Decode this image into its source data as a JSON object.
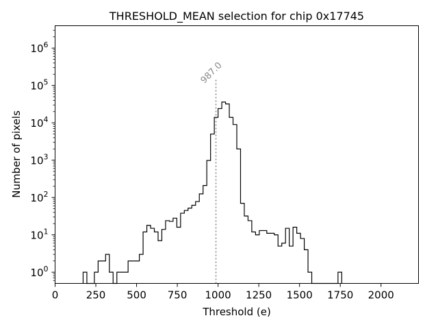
{
  "chart_data": {
    "type": "histogram",
    "title": "THRESHOLD_MEAN selection for chip 0x17745",
    "xlabel": "Threshold (e)",
    "ylabel": "Number of pixels",
    "xlim": [
      0,
      2230
    ],
    "ylim_log10": [
      -0.3,
      6.6
    ],
    "yscale": "log",
    "bin_width": 23,
    "line_color": "#000000",
    "x_ticks": [
      0,
      250,
      500,
      750,
      1000,
      1250,
      1500,
      1750,
      2000
    ],
    "y_ticks": [
      {
        "exp": 0,
        "base": "10",
        "power": "0"
      },
      {
        "exp": 1,
        "base": "10",
        "power": "1"
      },
      {
        "exp": 2,
        "base": "10",
        "power": "2"
      },
      {
        "exp": 3,
        "base": "10",
        "power": "3"
      },
      {
        "exp": 4,
        "base": "10",
        "power": "4"
      },
      {
        "exp": 5,
        "base": "10",
        "power": "5"
      },
      {
        "exp": 6,
        "base": "10",
        "power": "6"
      }
    ],
    "bins": [
      {
        "x": 172,
        "count": 1
      },
      {
        "x": 195,
        "count": 0
      },
      {
        "x": 218,
        "count": 0
      },
      {
        "x": 241,
        "count": 1
      },
      {
        "x": 264,
        "count": 2
      },
      {
        "x": 287,
        "count": 2
      },
      {
        "x": 310,
        "count": 3
      },
      {
        "x": 333,
        "count": 1
      },
      {
        "x": 356,
        "count": 0
      },
      {
        "x": 379,
        "count": 1
      },
      {
        "x": 402,
        "count": 1
      },
      {
        "x": 425,
        "count": 1
      },
      {
        "x": 448,
        "count": 2
      },
      {
        "x": 471,
        "count": 2
      },
      {
        "x": 494,
        "count": 2
      },
      {
        "x": 517,
        "count": 3
      },
      {
        "x": 540,
        "count": 12
      },
      {
        "x": 563,
        "count": 18
      },
      {
        "x": 586,
        "count": 15
      },
      {
        "x": 609,
        "count": 12
      },
      {
        "x": 632,
        "count": 7
      },
      {
        "x": 655,
        "count": 14
      },
      {
        "x": 678,
        "count": 24
      },
      {
        "x": 701,
        "count": 23
      },
      {
        "x": 724,
        "count": 28
      },
      {
        "x": 747,
        "count": 16
      },
      {
        "x": 770,
        "count": 38
      },
      {
        "x": 793,
        "count": 45
      },
      {
        "x": 816,
        "count": 52
      },
      {
        "x": 839,
        "count": 62
      },
      {
        "x": 862,
        "count": 78
      },
      {
        "x": 885,
        "count": 125
      },
      {
        "x": 908,
        "count": 210
      },
      {
        "x": 931,
        "count": 980
      },
      {
        "x": 954,
        "count": 5000
      },
      {
        "x": 977,
        "count": 14000
      },
      {
        "x": 1000,
        "count": 24000
      },
      {
        "x": 1023,
        "count": 36000
      },
      {
        "x": 1046,
        "count": 32000
      },
      {
        "x": 1069,
        "count": 14000
      },
      {
        "x": 1092,
        "count": 9000
      },
      {
        "x": 1115,
        "count": 2000
      },
      {
        "x": 1138,
        "count": 70
      },
      {
        "x": 1161,
        "count": 32
      },
      {
        "x": 1184,
        "count": 24
      },
      {
        "x": 1207,
        "count": 12
      },
      {
        "x": 1230,
        "count": 10
      },
      {
        "x": 1253,
        "count": 13
      },
      {
        "x": 1276,
        "count": 13
      },
      {
        "x": 1299,
        "count": 11
      },
      {
        "x": 1322,
        "count": 11
      },
      {
        "x": 1345,
        "count": 10
      },
      {
        "x": 1368,
        "count": 5
      },
      {
        "x": 1391,
        "count": 6
      },
      {
        "x": 1414,
        "count": 15
      },
      {
        "x": 1437,
        "count": 5
      },
      {
        "x": 1460,
        "count": 16
      },
      {
        "x": 1483,
        "count": 11
      },
      {
        "x": 1506,
        "count": 8
      },
      {
        "x": 1529,
        "count": 4
      },
      {
        "x": 1552,
        "count": 1
      },
      {
        "x": 1575,
        "count": 0
      },
      {
        "x": 1598,
        "count": 0
      },
      {
        "x": 1621,
        "count": 0
      },
      {
        "x": 1644,
        "count": 0
      },
      {
        "x": 1667,
        "count": 0
      },
      {
        "x": 1690,
        "count": 0
      },
      {
        "x": 1713,
        "count": 0
      },
      {
        "x": 1736,
        "count": 1
      }
    ],
    "annotation": {
      "x": 987,
      "text": "987.0",
      "line_top_value": 150000,
      "color": "#888888",
      "style": "dotted"
    }
  }
}
